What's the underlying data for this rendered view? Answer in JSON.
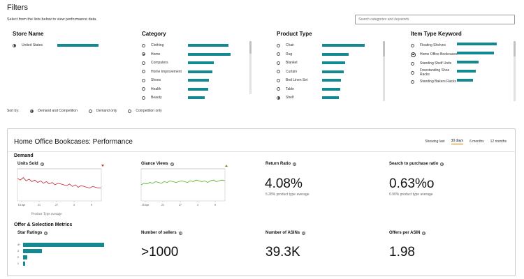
{
  "filters": {
    "title": "Filters",
    "subtitle": "Select from the lists below to view performance data.",
    "search_placeholder": "Search categories and keywords"
  },
  "store": {
    "title": "Store Name",
    "items": [
      {
        "label": "United States",
        "selected": true,
        "value": 0.92
      }
    ]
  },
  "category": {
    "title": "Category",
    "items": [
      {
        "label": "Clothing",
        "selected": false,
        "value": 0.9
      },
      {
        "label": "Home",
        "selected": true,
        "value": 0.95
      },
      {
        "label": "Computers",
        "selected": false,
        "value": 0.58
      },
      {
        "label": "Home Improvement",
        "selected": false,
        "value": 0.54
      },
      {
        "label": "Shoes",
        "selected": false,
        "value": 0.47
      },
      {
        "label": "Health",
        "selected": false,
        "value": 0.45
      },
      {
        "label": "Beauty",
        "selected": false,
        "value": 0.38
      }
    ]
  },
  "product_type": {
    "title": "Product Type",
    "items": [
      {
        "label": "Chair",
        "selected": false,
        "value": 0.95
      },
      {
        "label": "Rug",
        "selected": false,
        "value": 0.6
      },
      {
        "label": "Blanket",
        "selected": false,
        "value": 0.52
      },
      {
        "label": "Curtain",
        "selected": false,
        "value": 0.48
      },
      {
        "label": "Bed Linen Set",
        "selected": false,
        "value": 0.42
      },
      {
        "label": "Table",
        "selected": false,
        "value": 0.4
      },
      {
        "label": "Shelf",
        "selected": true,
        "value": 0.38
      }
    ]
  },
  "item_keyword": {
    "title": "Item Type Keyword",
    "items": [
      {
        "label": "Floating Shelves",
        "selected": false,
        "value": 0.95
      },
      {
        "label": "Home Office Bookcases",
        "selected": true,
        "value": 0.88
      },
      {
        "label": "Standing Shelf Units",
        "selected": false,
        "value": 0.52
      },
      {
        "label": "Freestanding Shoe Racks",
        "selected": false,
        "value": 0.45
      },
      {
        "label": "Standing Bakers Racks",
        "selected": false,
        "value": 0.38
      }
    ]
  },
  "sort": {
    "label": "Sort by:",
    "options": [
      {
        "label": "Demand and Competition",
        "selected": true
      },
      {
        "label": "Demand only",
        "selected": false
      },
      {
        "label": "Competition only",
        "selected": false
      }
    ]
  },
  "panel": {
    "title": "Home Office Bookcases: Performance",
    "showing_label": "Showing last",
    "tabs": [
      {
        "label": "30 days",
        "active": true
      },
      {
        "label": "6 months",
        "active": false
      },
      {
        "label": "12 months",
        "active": false
      }
    ],
    "demand": {
      "heading": "Demand",
      "units_sold": {
        "label": "Units Sold",
        "caption": "Product Type average",
        "trend": "down",
        "trend_color": "#c7212a"
      },
      "glance_views": {
        "label": "Glance Views",
        "trend": "up",
        "trend_color": "#7c8b1c"
      },
      "return_ratio": {
        "label": "Return Ratio",
        "value": "4.08%",
        "sub": "5.28% product type average"
      },
      "search_ratio": {
        "label": "Search to purchase ratio",
        "value": "0.63%o",
        "sub": "0.90% product type average"
      }
    },
    "offer": {
      "heading": "Offer & Selection Metrics",
      "star_ratings": {
        "label": "Star Ratings"
      },
      "sellers": {
        "label": "Number of sellers",
        "value": ">1000"
      },
      "asins": {
        "label": "Number of ASINs",
        "value": "39.3K"
      },
      "offers": {
        "label": "Offers per ASIN",
        "value": "1.98"
      }
    }
  },
  "chart_data": [
    {
      "type": "line",
      "title": "Units Sold",
      "x_ticks": [
        "15 Apr",
        "21",
        "27",
        "3",
        "9"
      ],
      "series": [
        {
          "name": "",
          "color": "#c7212a",
          "values": [
            48,
            46,
            49,
            45,
            47,
            44,
            46,
            43,
            45,
            42,
            44,
            41,
            43,
            40,
            42,
            41,
            40,
            39,
            41,
            38,
            40,
            37,
            39,
            38,
            37,
            36,
            38,
            37,
            36,
            36
          ]
        }
      ],
      "caption": "Product Type average"
    },
    {
      "type": "line",
      "title": "Glance Views",
      "x_ticks": [
        "15 Apr",
        "21",
        "27",
        "3",
        "9"
      ],
      "series": [
        {
          "name": "",
          "color": "#4caf1d",
          "values": [
            40,
            42,
            41,
            43,
            42,
            44,
            43,
            42,
            44,
            43,
            45,
            44,
            43,
            44,
            45,
            44,
            43,
            45,
            44,
            46,
            45,
            44,
            45,
            43,
            45,
            46,
            44,
            45,
            46,
            45
          ]
        }
      ]
    },
    {
      "type": "bar",
      "title": "Star Ratings",
      "categories": [
        "4+",
        "3",
        "2",
        "1"
      ],
      "values": [
        100,
        23,
        5,
        3
      ]
    }
  ]
}
